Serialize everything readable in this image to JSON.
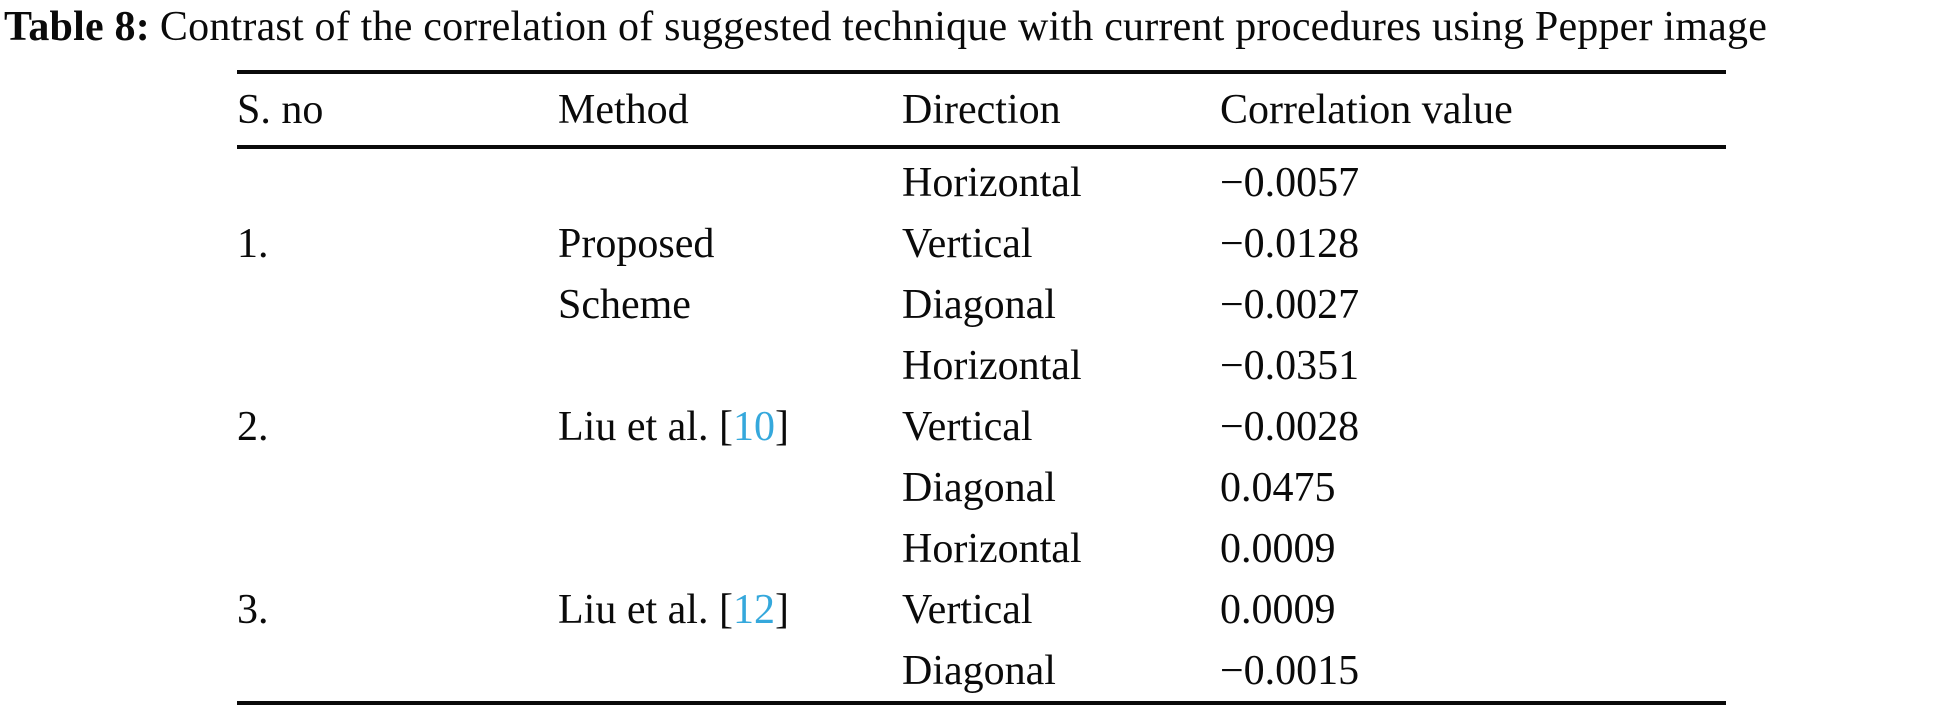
{
  "page": {
    "background": "#ffffff",
    "text_color": "#0a0a0a",
    "citation_color": "#35A8DC"
  },
  "caption": {
    "label": "Table 8:",
    "text": "Contrast of the correlation of suggested technique with current procedures using Pepper image"
  },
  "table": {
    "headers": {
      "sno": "S. no",
      "method": "Method",
      "direction": "Direction",
      "value": "Correlation value"
    },
    "lines": [
      {
        "sno": "",
        "method_pre": "",
        "method_ref": "",
        "method_post": "",
        "direction": "Horizontal",
        "value": "−0.0057"
      },
      {
        "sno": "1.",
        "method_pre": "Proposed",
        "method_ref": "",
        "method_post": "",
        "direction": "Vertical",
        "value": "−0.0128"
      },
      {
        "sno": "",
        "method_pre": "Scheme",
        "method_ref": "",
        "method_post": "",
        "direction": "Diagonal",
        "value": "−0.0027"
      },
      {
        "sno": "",
        "method_pre": "",
        "method_ref": "",
        "method_post": "",
        "direction": "Horizontal",
        "value": "−0.0351"
      },
      {
        "sno": "2.",
        "method_pre": "Liu et al. [",
        "method_ref": "10",
        "method_post": "]",
        "direction": "Vertical",
        "value": "−0.0028"
      },
      {
        "sno": "",
        "method_pre": "",
        "method_ref": "",
        "method_post": "",
        "direction": "Diagonal",
        "value": "0.0475"
      },
      {
        "sno": "",
        "method_pre": "",
        "method_ref": "",
        "method_post": "",
        "direction": "Horizontal",
        "value": "0.0009"
      },
      {
        "sno": "3.",
        "method_pre": "Liu et al. [",
        "method_ref": "12",
        "method_post": "]",
        "direction": "Vertical",
        "value": "0.0009"
      },
      {
        "sno": "",
        "method_pre": "",
        "method_ref": "",
        "method_post": "",
        "direction": "Diagonal",
        "value": "−0.0015"
      }
    ]
  }
}
